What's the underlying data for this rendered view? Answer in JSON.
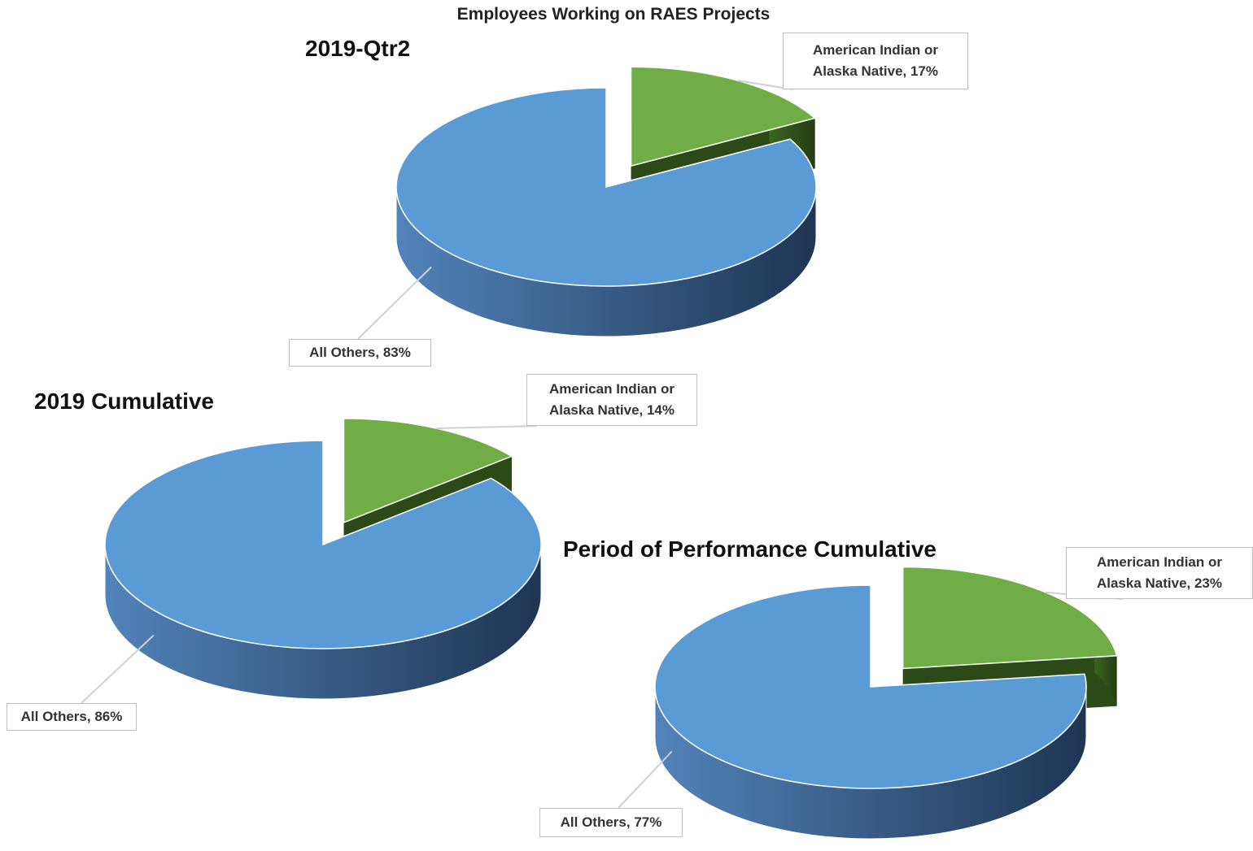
{
  "title": "Employees Working on RAES Projects",
  "chart_data": [
    {
      "type": "pie",
      "title": "2019-Qtr2",
      "values": [
        83,
        17
      ],
      "value_labels": [
        "All Others, 83%",
        "American Indian or Alaska Native, 17%"
      ],
      "colors": [
        "#5b9bd5",
        "#70ad47"
      ],
      "exploded": [
        false,
        true
      ]
    },
    {
      "type": "pie",
      "title": "2019 Cumulative",
      "values": [
        86,
        14
      ],
      "value_labels": [
        "All Others, 86%",
        "American Indian or Alaska Native, 14%"
      ],
      "colors": [
        "#5b9bd5",
        "#70ad47"
      ],
      "exploded": [
        false,
        true
      ]
    },
    {
      "type": "pie",
      "title": "Period of Performance Cumulative",
      "values": [
        77,
        23
      ],
      "value_labels": [
        "All Others, 77%",
        "American Indian or Alaska Native, 23%"
      ],
      "colors": [
        "#5b9bd5",
        "#70ad47"
      ],
      "exploded": [
        false,
        true
      ]
    }
  ]
}
